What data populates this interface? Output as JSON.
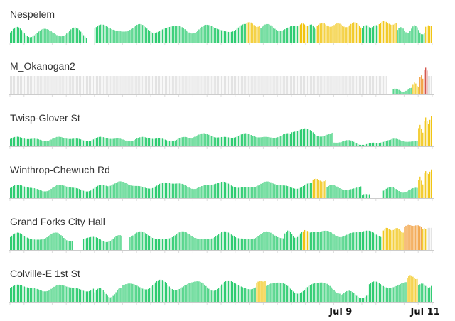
{
  "chart_data": {
    "type": "bar",
    "title": "",
    "xlabel": "",
    "ylabel": "",
    "date_labels": [
      {
        "label": "Jul 9",
        "bar_index": 235
      },
      {
        "label": "Jul 11",
        "bar_index": 295
      }
    ],
    "colors": {
      "good": "#2ecc71",
      "moderate": "#f1c40f",
      "usg": "#f0952a",
      "unhealthy": "#d0453b",
      "nodata": "#e3e3e3",
      "axis": "#cccccc",
      "tick": "#dddddd"
    },
    "bar_count": 300,
    "series": [
      {
        "name": "Nespelem",
        "segments": [
          {
            "start": 0,
            "end": 55,
            "type": "wave",
            "base": 0.55,
            "amp": 0.25,
            "period": 20
          },
          {
            "start": 60,
            "end": 168,
            "type": "wave",
            "base": 0.75,
            "amp": 0.2,
            "period": 25
          },
          {
            "start": 168,
            "end": 178,
            "type": "moderate",
            "base": 1.0,
            "amp": 0.1,
            "period": 10
          },
          {
            "start": 178,
            "end": 205,
            "type": "wave",
            "base": 0.8,
            "amp": 0.15,
            "period": 20
          },
          {
            "start": 205,
            "end": 212,
            "type": "moderate",
            "base": 0.95,
            "amp": 0.1,
            "period": 8
          },
          {
            "start": 212,
            "end": 218,
            "type": "wave",
            "base": 0.85,
            "amp": 0.1,
            "period": 8
          },
          {
            "start": 218,
            "end": 250,
            "type": "moderate",
            "base": 0.95,
            "amp": 0.15,
            "period": 12
          },
          {
            "start": 250,
            "end": 262,
            "type": "wave",
            "base": 0.85,
            "amp": 0.1,
            "period": 8
          },
          {
            "start": 262,
            "end": 275,
            "type": "moderate",
            "base": 1.05,
            "amp": 0.15,
            "period": 12
          },
          {
            "start": 275,
            "end": 295,
            "type": "wave",
            "base": 0.7,
            "amp": 0.2,
            "period": 10
          },
          {
            "start": 295,
            "end": 300,
            "type": "moderate",
            "base": 0.9,
            "amp": 0.05,
            "period": 5
          }
        ]
      },
      {
        "name": "M_Okanogan2",
        "segments": [
          {
            "start": 0,
            "end": 268,
            "type": "nodata",
            "base": 1.0,
            "amp": 0,
            "period": 1
          },
          {
            "start": 272,
            "end": 286,
            "type": "wave",
            "base": 0.25,
            "amp": 0.05,
            "period": 10
          },
          {
            "start": 286,
            "end": 291,
            "type": "moderate",
            "base": 0.5,
            "amp": 0.1,
            "period": 5
          },
          {
            "start": 291,
            "end": 294,
            "type": "usg",
            "base": 1.0,
            "amp": 0.1,
            "period": 3
          },
          {
            "start": 294,
            "end": 297,
            "type": "unhealthy",
            "base": 1.4,
            "amp": 0.1,
            "period": 3
          },
          {
            "start": 297,
            "end": 300,
            "type": "nodata",
            "base": 1.0,
            "amp": 0,
            "period": 1
          }
        ]
      },
      {
        "name": "Twisp-Glover St",
        "segments": [
          {
            "start": 0,
            "end": 130,
            "type": "wave",
            "base": 0.4,
            "amp": 0.08,
            "period": 30
          },
          {
            "start": 130,
            "end": 200,
            "type": "wave",
            "base": 0.55,
            "amp": 0.1,
            "period": 30
          },
          {
            "start": 200,
            "end": 230,
            "type": "wave",
            "base": 0.75,
            "amp": 0.2,
            "period": 30
          },
          {
            "start": 230,
            "end": 270,
            "type": "wave",
            "base": 0.2,
            "amp": 0.1,
            "period": 30
          },
          {
            "start": 270,
            "end": 290,
            "type": "wave",
            "base": 0.3,
            "amp": 0.1,
            "period": 20
          },
          {
            "start": 290,
            "end": 294,
            "type": "moderate",
            "base": 1.0,
            "amp": 0.2,
            "period": 4
          },
          {
            "start": 294,
            "end": 300,
            "type": "moderate",
            "base": 1.4,
            "amp": 0.2,
            "period": 4
          }
        ]
      },
      {
        "name": "Winthrop-Chewuch Rd",
        "segments": [
          {
            "start": 0,
            "end": 70,
            "type": "wave",
            "base": 0.55,
            "amp": 0.15,
            "period": 30
          },
          {
            "start": 70,
            "end": 215,
            "type": "wave",
            "base": 0.7,
            "amp": 0.15,
            "period": 35
          },
          {
            "start": 215,
            "end": 225,
            "type": "moderate",
            "base": 1.0,
            "amp": 0.1,
            "period": 10
          },
          {
            "start": 225,
            "end": 250,
            "type": "wave",
            "base": 0.55,
            "amp": 0.15,
            "period": 20
          },
          {
            "start": 250,
            "end": 256,
            "type": "wave",
            "base": 0.2,
            "amp": 0.05,
            "period": 6
          },
          {
            "start": 265,
            "end": 290,
            "type": "wave",
            "base": 0.45,
            "amp": 0.1,
            "period": 20
          },
          {
            "start": 290,
            "end": 294,
            "type": "moderate",
            "base": 1.0,
            "amp": 0.2,
            "period": 4
          },
          {
            "start": 294,
            "end": 300,
            "type": "moderate",
            "base": 1.4,
            "amp": 0.1,
            "period": 4
          }
        ]
      },
      {
        "name": "Grand Forks City Hall",
        "segments": [
          {
            "start": 0,
            "end": 45,
            "type": "wave",
            "base": 0.7,
            "amp": 0.2,
            "period": 25
          },
          {
            "start": 52,
            "end": 80,
            "type": "wave",
            "base": 0.6,
            "amp": 0.15,
            "period": 20
          },
          {
            "start": 85,
            "end": 195,
            "type": "wave",
            "base": 0.75,
            "amp": 0.2,
            "period": 30
          },
          {
            "start": 195,
            "end": 208,
            "type": "wave",
            "base": 0.85,
            "amp": 0.15,
            "period": 10
          },
          {
            "start": 208,
            "end": 213,
            "type": "moderate",
            "base": 1.0,
            "amp": 0.05,
            "period": 5
          },
          {
            "start": 213,
            "end": 265,
            "type": "wave",
            "base": 0.9,
            "amp": 0.15,
            "period": 30
          },
          {
            "start": 265,
            "end": 280,
            "type": "moderate",
            "base": 1.1,
            "amp": 0.1,
            "period": 8
          },
          {
            "start": 280,
            "end": 293,
            "type": "usg",
            "base": 1.3,
            "amp": 0.05,
            "period": 8
          },
          {
            "start": 293,
            "end": 296,
            "type": "moderate",
            "base": 1.2,
            "amp": 0.05,
            "period": 3
          },
          {
            "start": 296,
            "end": 300,
            "type": "nodata",
            "base": 1.2,
            "amp": 0,
            "period": 1
          }
        ]
      },
      {
        "name": "Colville-E 1st St",
        "segments": [
          {
            "start": 0,
            "end": 60,
            "type": "wave",
            "base": 0.75,
            "amp": 0.15,
            "period": 30
          },
          {
            "start": 60,
            "end": 80,
            "type": "wave",
            "base": 0.5,
            "amp": 0.2,
            "period": 15
          },
          {
            "start": 80,
            "end": 100,
            "type": "wave",
            "base": 0.85,
            "amp": 0.2,
            "period": 20
          },
          {
            "start": 100,
            "end": 175,
            "type": "wave",
            "base": 0.9,
            "amp": 0.25,
            "period": 25
          },
          {
            "start": 175,
            "end": 182,
            "type": "moderate",
            "base": 1.1,
            "amp": 0.05,
            "period": 7
          },
          {
            "start": 182,
            "end": 235,
            "type": "wave",
            "base": 0.8,
            "amp": 0.3,
            "period": 30
          },
          {
            "start": 235,
            "end": 255,
            "type": "wave",
            "base": 0.4,
            "amp": 0.15,
            "period": 20
          },
          {
            "start": 255,
            "end": 282,
            "type": "wave",
            "base": 0.9,
            "amp": 0.2,
            "period": 20
          },
          {
            "start": 282,
            "end": 290,
            "type": "moderate",
            "base": 1.3,
            "amp": 0.1,
            "period": 8
          },
          {
            "start": 290,
            "end": 300,
            "type": "wave",
            "base": 0.9,
            "amp": 0.15,
            "period": 10
          }
        ]
      }
    ]
  }
}
